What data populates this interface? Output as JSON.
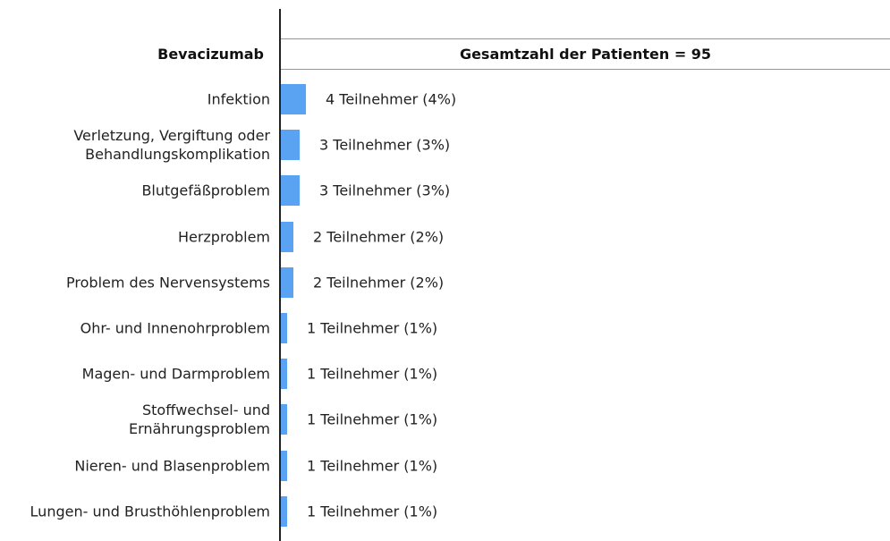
{
  "chart_data": {
    "type": "bar",
    "orientation": "horizontal",
    "row_header": "Bevacizumab",
    "title": "Gesamtzahl der Patienten = 95",
    "color": "#5aa2f2",
    "categories": [
      "Infektion",
      "Verletzung, Vergiftung oder\nBehandlungskomplikation",
      "Blutgefäßproblem",
      "Herzproblem",
      "Problem des Nervensystems",
      "Ohr- und Innenohrproblem",
      "Magen- und Darmproblem",
      "Stoffwechsel- und\nErnährungsproblem",
      "Nieren- und Blasenproblem",
      "Lungen- und Brusthöhlenproblem"
    ],
    "values": [
      4,
      3,
      3,
      2,
      2,
      1,
      1,
      1,
      1,
      1
    ],
    "value_labels": [
      "4 Teilnehmer (4%)",
      "3 Teilnehmer (3%)",
      "3 Teilnehmer (3%)",
      "2 Teilnehmer (2%)",
      "2 Teilnehmer (2%)",
      "1 Teilnehmer (1%)",
      "1 Teilnehmer (1%)",
      "1 Teilnehmer (1%)",
      "1 Teilnehmer (1%)",
      "1 Teilnehmer (1%)"
    ]
  }
}
